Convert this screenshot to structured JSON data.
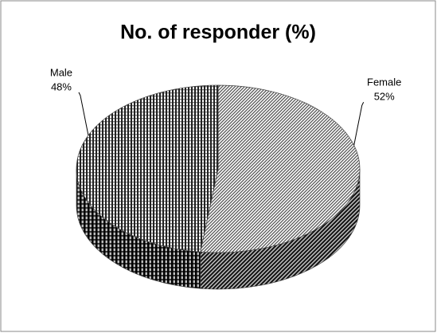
{
  "chart_data": {
    "type": "pie3d",
    "title": "No. of responder (%)",
    "categories": [
      "Female",
      "Male"
    ],
    "values": [
      52,
      48
    ],
    "value_labels": [
      "52%",
      "48%"
    ],
    "colors": [
      "#555555",
      "#222222"
    ]
  }
}
